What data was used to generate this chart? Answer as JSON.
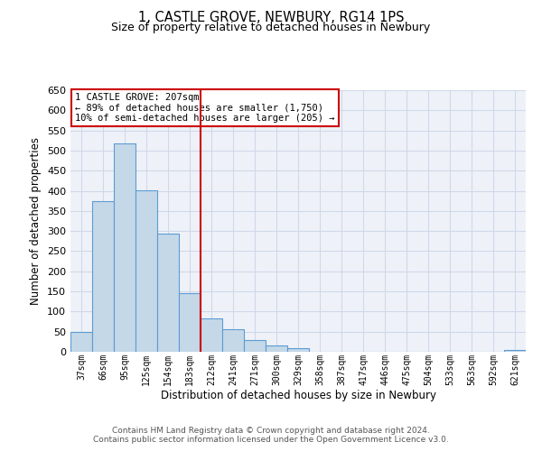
{
  "title": "1, CASTLE GROVE, NEWBURY, RG14 1PS",
  "subtitle": "Size of property relative to detached houses in Newbury",
  "xlabel": "Distribution of detached houses by size in Newbury",
  "ylabel": "Number of detached properties",
  "bar_labels": [
    "37sqm",
    "66sqm",
    "95sqm",
    "125sqm",
    "154sqm",
    "183sqm",
    "212sqm",
    "241sqm",
    "271sqm",
    "300sqm",
    "329sqm",
    "358sqm",
    "387sqm",
    "417sqm",
    "446sqm",
    "475sqm",
    "504sqm",
    "533sqm",
    "563sqm",
    "592sqm",
    "621sqm"
  ],
  "bar_values": [
    50,
    375,
    517,
    402,
    293,
    145,
    82,
    55,
    30,
    15,
    10,
    0,
    0,
    0,
    0,
    0,
    0,
    0,
    0,
    0,
    5
  ],
  "bar_color": "#c5d8e8",
  "bar_edge_color": "#5b9bd5",
  "grid_color": "#d0d8e8",
  "bg_color": "#eef2f8",
  "vline_x": 5.5,
  "vline_color": "#cc0000",
  "annotation_line1": "1 CASTLE GROVE: 207sqm",
  "annotation_line2": "← 89% of detached houses are smaller (1,750)",
  "annotation_line3": "10% of semi-detached houses are larger (205) →",
  "annotation_box_color": "#cc0000",
  "ylim": [
    0,
    650
  ],
  "yticks": [
    0,
    50,
    100,
    150,
    200,
    250,
    300,
    350,
    400,
    450,
    500,
    550,
    600,
    650
  ],
  "footnote1": "Contains HM Land Registry data © Crown copyright and database right 2024.",
  "footnote2": "Contains public sector information licensed under the Open Government Licence v3.0.",
  "title_fontsize": 10.5,
  "subtitle_fontsize": 9
}
